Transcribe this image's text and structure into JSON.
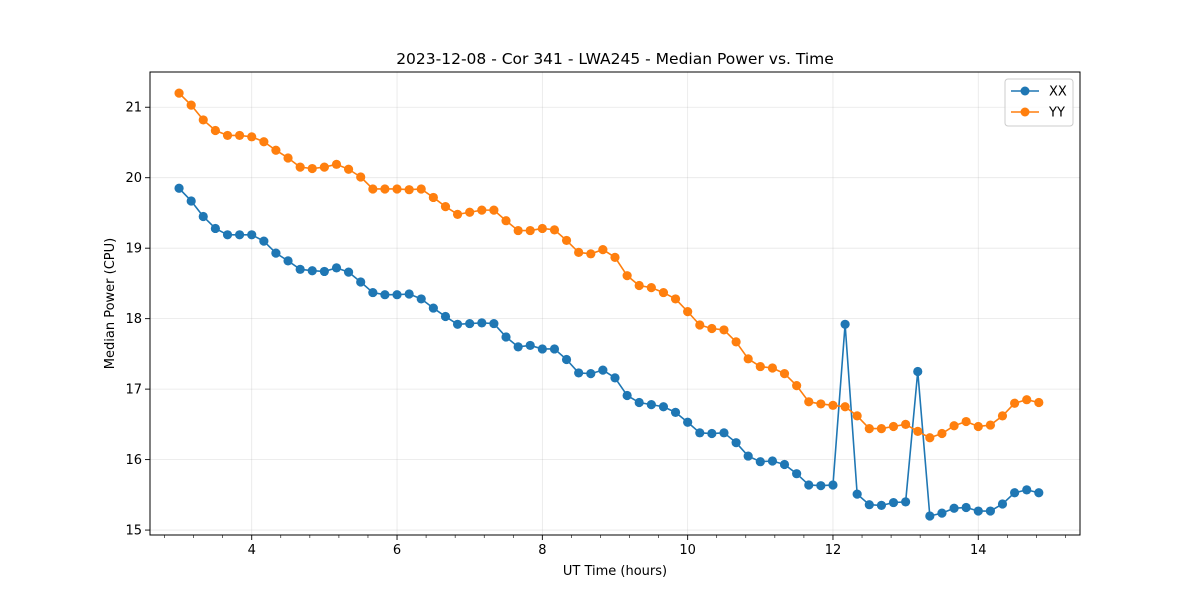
{
  "chart_data": {
    "type": "line",
    "title": "2023-12-08 - Cor 341 - LWA245 - Median Power vs. Time",
    "xlabel": "UT Time (hours)",
    "ylabel": "Median Power (CPU)",
    "xlim": [
      2.6,
      15.4
    ],
    "ylim": [
      14.93,
      21.5
    ],
    "xticks": [
      4,
      6,
      8,
      10,
      12,
      14
    ],
    "yticks": [
      15,
      16,
      17,
      18,
      19,
      20,
      21
    ],
    "grid": true,
    "legend_position": "top-right",
    "x": [
      3.0,
      3.167,
      3.333,
      3.5,
      3.667,
      3.833,
      4.0,
      4.167,
      4.333,
      4.5,
      4.667,
      4.833,
      5.0,
      5.167,
      5.333,
      5.5,
      5.667,
      5.833,
      6.0,
      6.167,
      6.333,
      6.5,
      6.667,
      6.833,
      7.0,
      7.167,
      7.333,
      7.5,
      7.667,
      7.833,
      8.0,
      8.167,
      8.333,
      8.5,
      8.667,
      8.833,
      9.0,
      9.167,
      9.333,
      9.5,
      9.667,
      9.833,
      10.0,
      10.167,
      10.333,
      10.5,
      10.667,
      10.833,
      11.0,
      11.167,
      11.333,
      11.5,
      11.667,
      11.833,
      12.0,
      12.167,
      12.333,
      12.5,
      12.667,
      12.833,
      13.0,
      13.167,
      13.333,
      13.5,
      13.667,
      13.833,
      14.0,
      14.167,
      14.333,
      14.5,
      14.667,
      14.833
    ],
    "series": [
      {
        "name": "XX",
        "color": "#1f77b4",
        "values": [
          19.85,
          19.67,
          19.45,
          19.28,
          19.19,
          19.19,
          19.19,
          19.1,
          18.93,
          18.82,
          18.7,
          18.68,
          18.67,
          18.72,
          18.66,
          18.52,
          18.37,
          18.34,
          18.34,
          18.35,
          18.28,
          18.15,
          18.03,
          17.92,
          17.93,
          17.94,
          17.93,
          17.74,
          17.6,
          17.62,
          17.57,
          17.57,
          17.42,
          17.23,
          17.22,
          17.27,
          17.16,
          16.91,
          16.81,
          16.78,
          16.75,
          16.67,
          16.53,
          16.38,
          16.37,
          16.38,
          16.24,
          16.05,
          15.97,
          15.98,
          15.93,
          15.8,
          15.64,
          15.63,
          15.64,
          17.92,
          15.51,
          15.36,
          15.35,
          15.39,
          15.4,
          17.25,
          15.2,
          15.24,
          15.31,
          15.32,
          15.27,
          15.27,
          15.37,
          15.53,
          15.57,
          15.53
        ]
      },
      {
        "name": "YY",
        "color": "#ff7f0e",
        "values": [
          21.2,
          21.03,
          20.82,
          20.67,
          20.6,
          20.6,
          20.58,
          20.51,
          20.39,
          20.28,
          20.15,
          20.13,
          20.15,
          20.19,
          20.12,
          20.01,
          19.84,
          19.84,
          19.84,
          19.83,
          19.84,
          19.72,
          19.59,
          19.48,
          19.51,
          19.54,
          19.54,
          19.39,
          19.25,
          19.25,
          19.28,
          19.26,
          19.11,
          18.94,
          18.92,
          18.98,
          18.87,
          18.61,
          18.47,
          18.44,
          18.37,
          18.28,
          18.1,
          17.91,
          17.86,
          17.84,
          17.67,
          17.43,
          17.32,
          17.3,
          17.22,
          17.05,
          16.82,
          16.79,
          16.77,
          16.75,
          16.62,
          16.44,
          16.44,
          16.47,
          16.5,
          16.4,
          16.31,
          16.37,
          16.48,
          16.54,
          16.47,
          16.49,
          16.62,
          16.8,
          16.85,
          16.81
        ]
      }
    ]
  }
}
